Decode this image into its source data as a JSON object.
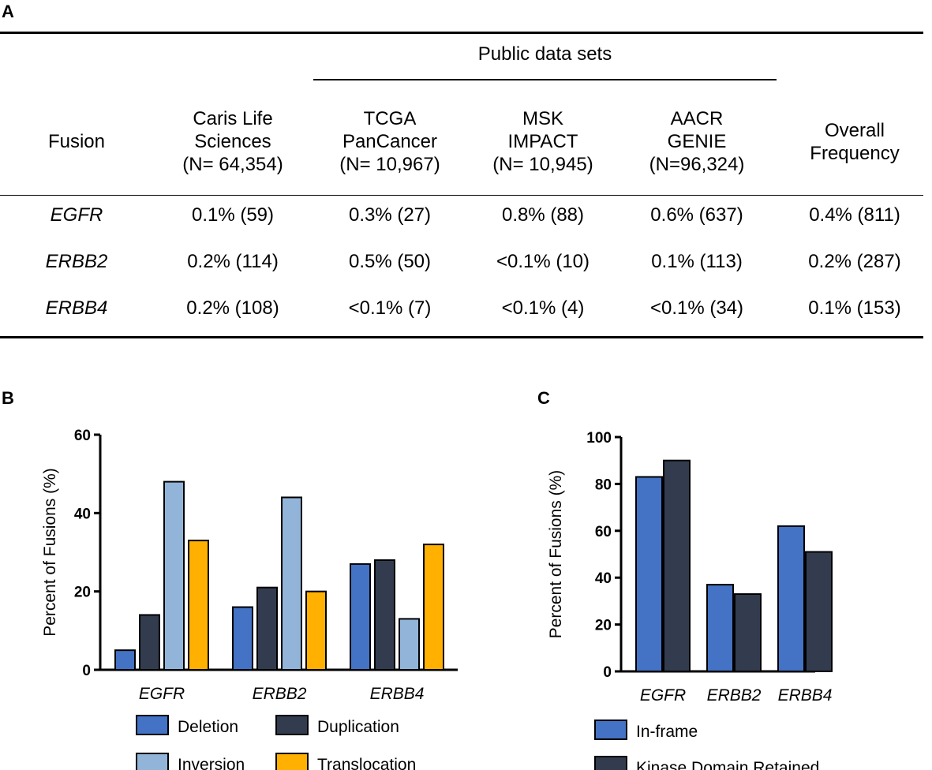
{
  "panels": {
    "a": "A",
    "b": "B",
    "c": "C"
  },
  "table": {
    "group_header": "Public data sets",
    "columns": [
      {
        "lines": [
          "Fusion"
        ]
      },
      {
        "lines": [
          "Caris Life",
          "Sciences",
          "(N= 64,354)"
        ]
      },
      {
        "lines": [
          "TCGA",
          "PanCancer",
          "(N= 10,967)"
        ]
      },
      {
        "lines": [
          "MSK",
          "IMPACT",
          "(N= 10,945)"
        ]
      },
      {
        "lines": [
          "AACR",
          "GENIE",
          "(N=96,324)"
        ]
      },
      {
        "lines": [
          "Overall",
          "Frequency"
        ]
      }
    ],
    "rows": [
      {
        "gene": "EGFR",
        "values": [
          "0.1% (59)",
          "0.3% (27)",
          "0.8% (88)",
          "0.6% (637)",
          "0.4% (811)"
        ]
      },
      {
        "gene": "ERBB2",
        "values": [
          "0.2% (114)",
          "0.5% (50)",
          "<0.1% (10)",
          "0.1% (113)",
          "0.2% (287)"
        ]
      },
      {
        "gene": "ERBB4",
        "values": [
          "0.2% (108)",
          "<0.1% (7)",
          "<0.1% (4)",
          "<0.1% (34)",
          "0.1% (153)"
        ]
      }
    ]
  },
  "chart_data": [
    {
      "type": "bar",
      "panel": "B",
      "ylabel": "Percent of Fusions (%)",
      "ylim": [
        0,
        60
      ],
      "yticks": [
        "0",
        "20",
        "40",
        "60"
      ],
      "categories": [
        "EGFR",
        "ERBB2",
        "ERBB4"
      ],
      "series": [
        {
          "name": "Deletion",
          "color": "#4472c4",
          "values": [
            5,
            16,
            27
          ]
        },
        {
          "name": "Duplication",
          "color": "#323c4e",
          "values": [
            14,
            21,
            28
          ]
        },
        {
          "name": "Inversion",
          "color": "#92b4d8",
          "values": [
            48,
            44,
            13
          ]
        },
        {
          "name": "Translocation",
          "color": "#ffb000",
          "values": [
            33,
            20,
            32
          ]
        }
      ]
    },
    {
      "type": "bar",
      "panel": "C",
      "ylabel": "Percent of Fusions (%)",
      "ylim": [
        0,
        100
      ],
      "yticks": [
        "0",
        "20",
        "40",
        "60",
        "80",
        "100"
      ],
      "categories": [
        "EGFR",
        "ERBB2",
        "ERBB4"
      ],
      "series": [
        {
          "name": "In-frame",
          "color": "#4472c4",
          "values": [
            83,
            37,
            62
          ]
        },
        {
          "name": "Kinase Domain Retained",
          "color": "#323c4e",
          "values": [
            90,
            33,
            51
          ]
        }
      ]
    }
  ]
}
